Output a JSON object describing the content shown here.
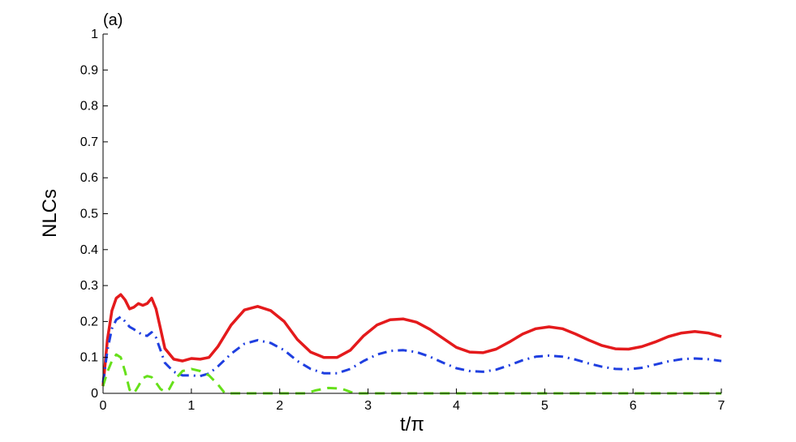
{
  "chart_data": {
    "type": "line",
    "panel_label": "(a)",
    "xlabel": "t/π",
    "ylabel": "NLCs",
    "xlim": [
      0,
      7
    ],
    "ylim": [
      0,
      1
    ],
    "x_ticks": [
      "0",
      "1",
      "2",
      "3",
      "4",
      "5",
      "6",
      "7"
    ],
    "y_ticks": [
      "0",
      "0.1",
      "0.2",
      "0.3",
      "0.4",
      "0.5",
      "0.6",
      "0.7",
      "0.8",
      "0.9",
      "1"
    ],
    "grid": false,
    "series": [
      {
        "color": "#e41a1c",
        "style": "solid",
        "points": [
          [
            0,
            0.02
          ],
          [
            0.05,
            0.15
          ],
          [
            0.1,
            0.23
          ],
          [
            0.15,
            0.265
          ],
          [
            0.2,
            0.275
          ],
          [
            0.25,
            0.26
          ],
          [
            0.3,
            0.235
          ],
          [
            0.35,
            0.24
          ],
          [
            0.4,
            0.25
          ],
          [
            0.45,
            0.245
          ],
          [
            0.5,
            0.25
          ],
          [
            0.55,
            0.265
          ],
          [
            0.6,
            0.235
          ],
          [
            0.65,
            0.18
          ],
          [
            0.7,
            0.125
          ],
          [
            0.8,
            0.095
          ],
          [
            0.9,
            0.09
          ],
          [
            1.0,
            0.097
          ],
          [
            1.1,
            0.095
          ],
          [
            1.2,
            0.1
          ],
          [
            1.3,
            0.13
          ],
          [
            1.45,
            0.19
          ],
          [
            1.6,
            0.232
          ],
          [
            1.75,
            0.242
          ],
          [
            1.9,
            0.23
          ],
          [
            2.05,
            0.2
          ],
          [
            2.2,
            0.15
          ],
          [
            2.35,
            0.115
          ],
          [
            2.5,
            0.1
          ],
          [
            2.65,
            0.1
          ],
          [
            2.8,
            0.12
          ],
          [
            2.95,
            0.16
          ],
          [
            3.1,
            0.19
          ],
          [
            3.25,
            0.205
          ],
          [
            3.4,
            0.207
          ],
          [
            3.55,
            0.198
          ],
          [
            3.7,
            0.178
          ],
          [
            3.85,
            0.153
          ],
          [
            4.0,
            0.128
          ],
          [
            4.15,
            0.115
          ],
          [
            4.3,
            0.113
          ],
          [
            4.45,
            0.123
          ],
          [
            4.6,
            0.143
          ],
          [
            4.75,
            0.165
          ],
          [
            4.9,
            0.18
          ],
          [
            5.05,
            0.185
          ],
          [
            5.2,
            0.18
          ],
          [
            5.35,
            0.165
          ],
          [
            5.5,
            0.148
          ],
          [
            5.65,
            0.133
          ],
          [
            5.8,
            0.124
          ],
          [
            5.95,
            0.123
          ],
          [
            6.1,
            0.13
          ],
          [
            6.25,
            0.143
          ],
          [
            6.4,
            0.158
          ],
          [
            6.55,
            0.168
          ],
          [
            6.7,
            0.172
          ],
          [
            6.85,
            0.168
          ],
          [
            7.0,
            0.158
          ]
        ]
      },
      {
        "color": "#1f3fe0",
        "style": "dashdot",
        "points": [
          [
            0,
            0.03
          ],
          [
            0.05,
            0.12
          ],
          [
            0.1,
            0.18
          ],
          [
            0.15,
            0.205
          ],
          [
            0.2,
            0.213
          ],
          [
            0.25,
            0.2
          ],
          [
            0.3,
            0.185
          ],
          [
            0.35,
            0.178
          ],
          [
            0.4,
            0.17
          ],
          [
            0.45,
            0.162
          ],
          [
            0.5,
            0.16
          ],
          [
            0.55,
            0.17
          ],
          [
            0.6,
            0.155
          ],
          [
            0.65,
            0.12
          ],
          [
            0.7,
            0.085
          ],
          [
            0.8,
            0.06
          ],
          [
            0.9,
            0.05
          ],
          [
            1.0,
            0.05
          ],
          [
            1.1,
            0.048
          ],
          [
            1.2,
            0.055
          ],
          [
            1.3,
            0.075
          ],
          [
            1.45,
            0.11
          ],
          [
            1.6,
            0.138
          ],
          [
            1.75,
            0.148
          ],
          [
            1.9,
            0.14
          ],
          [
            2.05,
            0.12
          ],
          [
            2.2,
            0.09
          ],
          [
            2.35,
            0.068
          ],
          [
            2.5,
            0.056
          ],
          [
            2.65,
            0.056
          ],
          [
            2.8,
            0.068
          ],
          [
            2.95,
            0.09
          ],
          [
            3.1,
            0.108
          ],
          [
            3.25,
            0.118
          ],
          [
            3.4,
            0.12
          ],
          [
            3.55,
            0.115
          ],
          [
            3.7,
            0.102
          ],
          [
            3.85,
            0.085
          ],
          [
            4.0,
            0.07
          ],
          [
            4.15,
            0.062
          ],
          [
            4.3,
            0.06
          ],
          [
            4.45,
            0.066
          ],
          [
            4.6,
            0.078
          ],
          [
            4.75,
            0.092
          ],
          [
            4.9,
            0.102
          ],
          [
            5.05,
            0.105
          ],
          [
            5.2,
            0.102
          ],
          [
            5.35,
            0.094
          ],
          [
            5.5,
            0.083
          ],
          [
            5.65,
            0.074
          ],
          [
            5.8,
            0.068
          ],
          [
            5.95,
            0.067
          ],
          [
            6.1,
            0.071
          ],
          [
            6.25,
            0.08
          ],
          [
            6.4,
            0.089
          ],
          [
            6.55,
            0.095
          ],
          [
            6.7,
            0.097
          ],
          [
            6.85,
            0.095
          ],
          [
            7.0,
            0.09
          ]
        ]
      },
      {
        "color": "#66e01a",
        "style": "dashed",
        "points": [
          [
            0,
            0.02
          ],
          [
            0.05,
            0.06
          ],
          [
            0.1,
            0.09
          ],
          [
            0.15,
            0.108
          ],
          [
            0.2,
            0.1
          ],
          [
            0.25,
            0.06
          ],
          [
            0.3,
            0.01
          ],
          [
            0.35,
            0.0
          ],
          [
            0.4,
            0.02
          ],
          [
            0.45,
            0.042
          ],
          [
            0.5,
            0.048
          ],
          [
            0.55,
            0.045
          ],
          [
            0.6,
            0.03
          ],
          [
            0.65,
            0.012
          ],
          [
            0.7,
            0.005
          ],
          [
            0.75,
            0.012
          ],
          [
            0.8,
            0.035
          ],
          [
            0.9,
            0.062
          ],
          [
            1.0,
            0.068
          ],
          [
            1.1,
            0.062
          ],
          [
            1.2,
            0.05
          ],
          [
            1.3,
            0.025
          ],
          [
            1.38,
            0.0
          ],
          [
            2.3,
            0.0
          ],
          [
            2.4,
            0.008
          ],
          [
            2.55,
            0.015
          ],
          [
            2.7,
            0.013
          ],
          [
            2.8,
            0.004
          ],
          [
            2.85,
            0.0
          ],
          [
            7.0,
            0.0
          ]
        ]
      }
    ]
  }
}
